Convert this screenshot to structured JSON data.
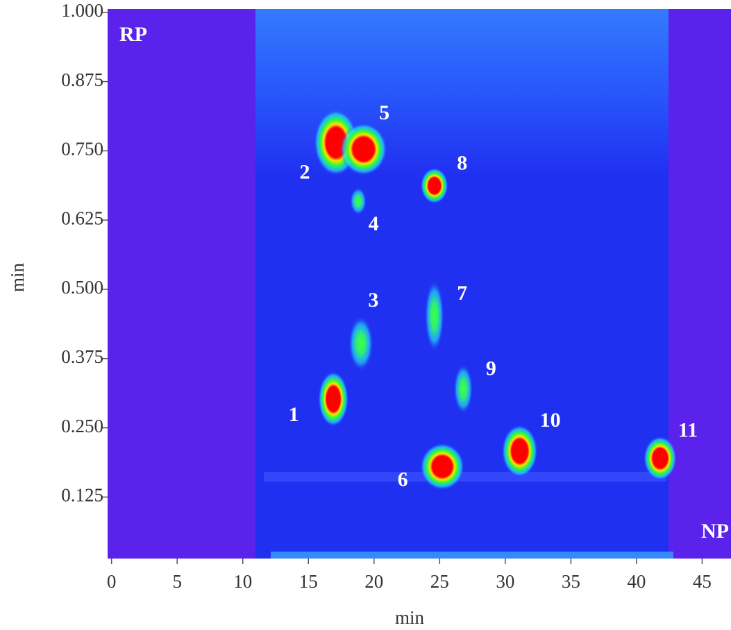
{
  "chart_data": {
    "type": "contour",
    "xlabel": "min",
    "ylabel": "min",
    "corner_labels": {
      "top_left": "RP",
      "bottom_right": "NP"
    },
    "xlim": [
      -0.3,
      47.2
    ],
    "ylim": [
      0.014,
      1.006
    ],
    "xticks": [
      0,
      5,
      10,
      15,
      20,
      25,
      30,
      35,
      40,
      45
    ],
    "yticks": [
      {
        "value": 0.125,
        "label": "0.125"
      },
      {
        "value": 0.25,
        "label": "0.250"
      },
      {
        "value": 0.375,
        "label": "0.375"
      },
      {
        "value": 0.5,
        "label": "0.500"
      },
      {
        "value": 0.625,
        "label": "0.625"
      },
      {
        "value": 0.75,
        "label": "0.750"
      },
      {
        "value": 0.875,
        "label": "0.875"
      },
      {
        "value": 1.0,
        "label": "1.000"
      }
    ],
    "peaks": {
      "labels": [
        "1",
        "2",
        "3",
        "4",
        "5",
        "6",
        "7",
        "8",
        "9",
        "10",
        "11"
      ],
      "x": [
        16.9,
        17.1,
        19.0,
        18.8,
        19.2,
        25.2,
        24.6,
        24.6,
        26.8,
        31.1,
        41.8
      ],
      "y": [
        0.302,
        0.765,
        0.402,
        0.659,
        0.753,
        0.18,
        0.452,
        0.687,
        0.32,
        0.208,
        0.195
      ],
      "colors": [
        "red",
        "red",
        "green",
        "green",
        "red",
        "red",
        "green",
        "red",
        "green",
        "red",
        "red"
      ]
    }
  }
}
